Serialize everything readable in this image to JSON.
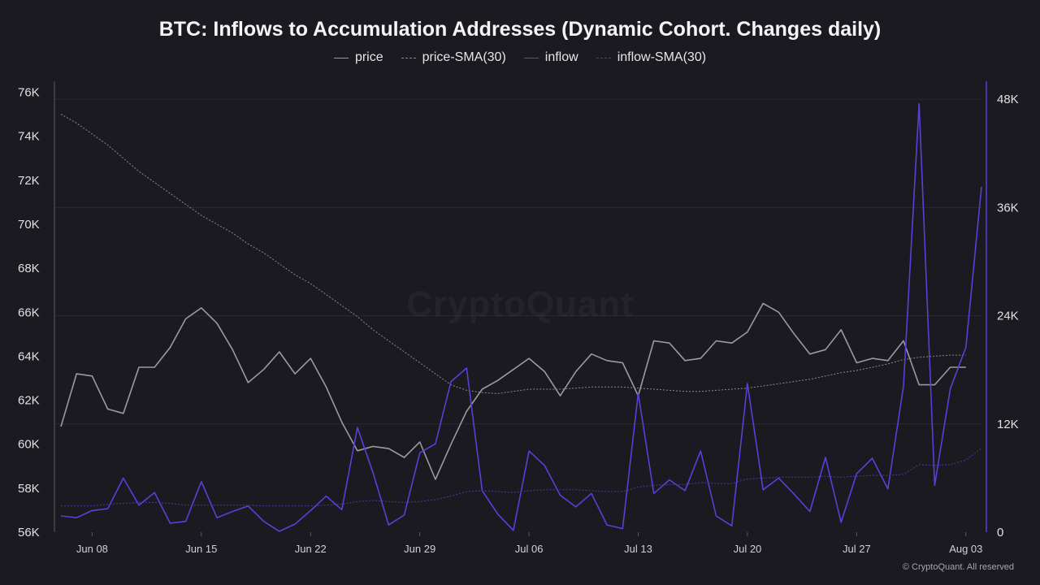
{
  "chart_data": {
    "type": "line",
    "title": "BTC: Inflows to Accumulation Addresses (Dynamic Cohort. Changes daily)",
    "legend_position": "top-center",
    "grid": true,
    "x_dates": [
      "Jun 06",
      "Jun 07",
      "Jun 08",
      "Jun 09",
      "Jun 10",
      "Jun 11",
      "Jun 12",
      "Jun 13",
      "Jun 14",
      "Jun 15",
      "Jun 16",
      "Jun 17",
      "Jun 18",
      "Jun 19",
      "Jun 20",
      "Jun 21",
      "Jun 22",
      "Jun 23",
      "Jun 24",
      "Jun 25",
      "Jun 26",
      "Jun 27",
      "Jun 28",
      "Jun 29",
      "Jun 30",
      "Jul 01",
      "Jul 02",
      "Jul 03",
      "Jul 04",
      "Jul 05",
      "Jul 06",
      "Jul 07",
      "Jul 08",
      "Jul 09",
      "Jul 10",
      "Jul 11",
      "Jul 12",
      "Jul 13",
      "Jul 14",
      "Jul 15",
      "Jul 16",
      "Jul 17",
      "Jul 18",
      "Jul 19",
      "Jul 20",
      "Jul 21",
      "Jul 22",
      "Jul 23",
      "Jul 24",
      "Jul 25",
      "Jul 26",
      "Jul 27",
      "Jul 28",
      "Jul 29",
      "Jul 30",
      "Jul 31",
      "Aug 01",
      "Aug 02",
      "Aug 03",
      "Aug 04"
    ],
    "x_ticks": [
      "Jun 08",
      "Jun 15",
      "Jun 22",
      "Jun 29",
      "Jul 06",
      "Jul 13",
      "Jul 20",
      "Jul 27",
      "Aug 03"
    ],
    "y_left": {
      "ticks": [
        "56K",
        "58K",
        "60K",
        "62K",
        "64K",
        "66K",
        "68K",
        "70K",
        "72K",
        "74K",
        "76K"
      ],
      "ylim": [
        56000,
        76500
      ]
    },
    "y_right": {
      "ticks": [
        "0",
        "12K",
        "24K",
        "36K",
        "48K"
      ],
      "ylim": [
        0,
        50000
      ]
    },
    "series": [
      {
        "name": "price",
        "axis": "left",
        "color": "#9a9aa0",
        "style": "solid",
        "values": [
          60800,
          63200,
          63100,
          61600,
          61400,
          63500,
          63500,
          64400,
          65700,
          66200,
          65500,
          64300,
          62800,
          63400,
          64200,
          63200,
          63900,
          62600,
          61000,
          59700,
          59900,
          59800,
          59400,
          60100,
          58400,
          60000,
          61500,
          62500,
          62900,
          63400,
          63900,
          63300,
          62200,
          63300,
          64100,
          63800,
          63700,
          62200,
          64700,
          64600,
          63800,
          63900,
          64700,
          64600,
          65100,
          66400,
          66000,
          65000,
          64100,
          64300,
          65200,
          63700,
          63900,
          63800,
          64700,
          62700,
          62700,
          63500,
          63500,
          null
        ]
      },
      {
        "name": "price-SMA(30)",
        "axis": "left",
        "color": "#8a8a90",
        "style": "dashed",
        "values": [
          75000,
          74600,
          74100,
          73600,
          73000,
          72400,
          71900,
          71400,
          70900,
          70400,
          70000,
          69600,
          69100,
          68700,
          68200,
          67700,
          67300,
          66800,
          66300,
          65800,
          65200,
          64700,
          64200,
          63700,
          63200,
          62700,
          62450,
          62350,
          62300,
          62400,
          62500,
          62500,
          62500,
          62550,
          62600,
          62600,
          62600,
          62550,
          62500,
          62450,
          62400,
          62400,
          62450,
          62500,
          62550,
          62650,
          62750,
          62850,
          62950,
          63100,
          63250,
          63350,
          63500,
          63650,
          63850,
          63950,
          64000,
          64050,
          64050,
          null
        ]
      },
      {
        "name": "inflow",
        "axis": "right",
        "color": "#5b3fd9",
        "style": "solid",
        "values": [
          1800,
          1600,
          2400,
          2600,
          6000,
          3000,
          4400,
          1000,
          1200,
          5600,
          1600,
          2300,
          2900,
          1200,
          100,
          900,
          2400,
          4000,
          2500,
          11600,
          6600,
          800,
          1900,
          8800,
          9800,
          16700,
          18200,
          4600,
          2000,
          200,
          9000,
          7400,
          4100,
          2800,
          4300,
          800,
          400,
          15400,
          4300,
          5800,
          4600,
          9000,
          1800,
          700,
          16500,
          4700,
          6000,
          4200,
          2300,
          8300,
          1100,
          6500,
          8200,
          4800,
          16200,
          47500,
          5200,
          15900,
          20500,
          38300
        ]
      },
      {
        "name": "inflow-SMA(30)",
        "axis": "right",
        "color": "#4a3aa8",
        "style": "dashed",
        "values": [
          2900,
          2900,
          2900,
          3100,
          3200,
          3300,
          3300,
          3200,
          3000,
          3000,
          3000,
          3000,
          3000,
          2900,
          2900,
          2900,
          2900,
          3000,
          3100,
          3400,
          3500,
          3400,
          3300,
          3400,
          3600,
          4000,
          4500,
          4600,
          4500,
          4400,
          4600,
          4700,
          4700,
          4700,
          4600,
          4500,
          4500,
          5000,
          5200,
          5300,
          5300,
          5500,
          5400,
          5400,
          5900,
          6000,
          6100,
          6100,
          6100,
          6200,
          6100,
          6200,
          6300,
          6300,
          6400,
          7500,
          7400,
          7500,
          8000,
          9300
        ]
      }
    ]
  },
  "watermark": "CryptoQuant",
  "footer": "© CryptoQuant. All reserved"
}
